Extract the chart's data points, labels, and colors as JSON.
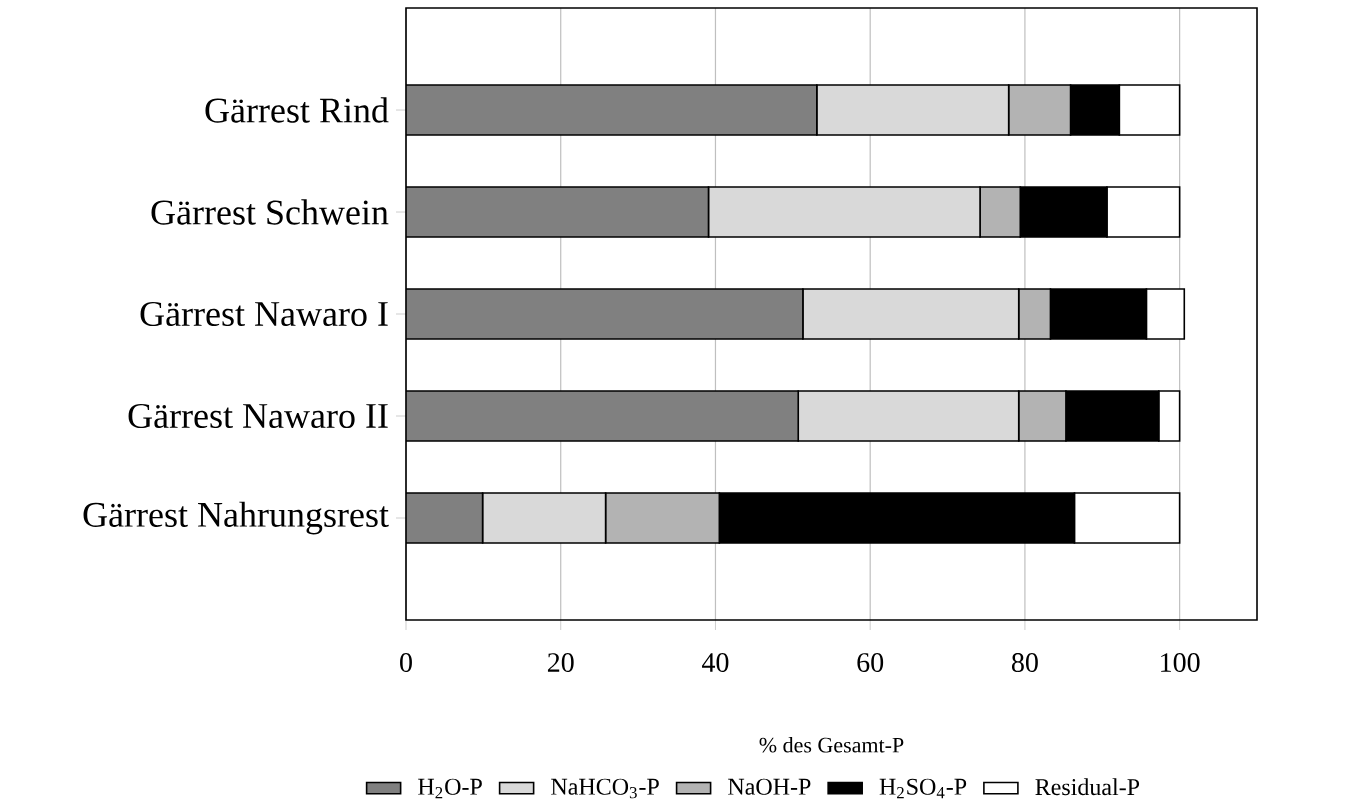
{
  "chart_data": {
    "type": "bar",
    "orientation": "horizontal",
    "stacked": true,
    "xlabel": "% des Gesamt-P",
    "categories": [
      "Gärrest Rind",
      "Gärrest Schwein",
      "Gärrest Nawaro I",
      "Gärrest Nawaro II",
      "Gärrest Nahrungsrest"
    ],
    "series": [
      {
        "name": "H$_{2}$O-P",
        "color": "#808080",
        "values": [
          53.1,
          39.1,
          51.3,
          50.7,
          9.9
        ]
      },
      {
        "name": "NaHCO$_{3}$-P",
        "color": "#d9d9d9",
        "values": [
          24.8,
          35.1,
          27.9,
          28.5,
          15.9
        ]
      },
      {
        "name": "NaOH-P",
        "color": "#b3b3b3",
        "values": [
          8.0,
          5.2,
          4.1,
          6.1,
          14.7
        ]
      },
      {
        "name": "H$_{2}$SO$_{4}$-P",
        "color": "#000000",
        "values": [
          6.3,
          11.2,
          12.4,
          12.0,
          45.9
        ]
      },
      {
        "name": "Residual-P",
        "color": "#ffffff",
        "values": [
          7.8,
          9.4,
          4.9,
          2.7,
          13.6
        ]
      }
    ],
    "xlim": [
      0,
      110
    ],
    "xticks": [
      0,
      20,
      40,
      60,
      80,
      100
    ],
    "grid": "x",
    "legend": "bottom"
  }
}
